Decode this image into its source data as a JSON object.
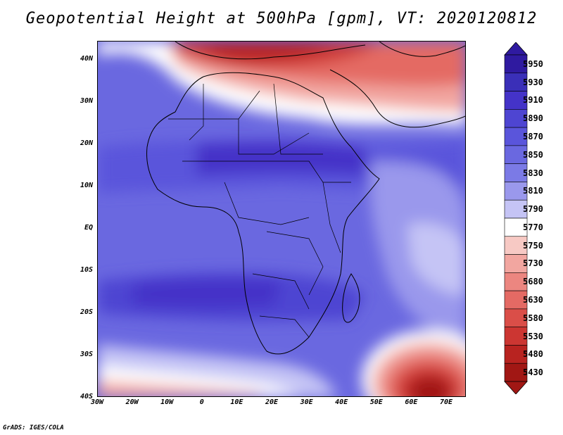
{
  "title": "Geopotential Height at 500hPa [gpm], VT: 2020120812",
  "credit": "GrADS: IGES/COLA",
  "lat_labels": [
    "40N",
    "30N",
    "20N",
    "10N",
    "EQ",
    "10S",
    "20S",
    "30S",
    "40S"
  ],
  "lon_labels": [
    "30W",
    "20W",
    "10W",
    "0",
    "10E",
    "20E",
    "30E",
    "40E",
    "50E",
    "60E",
    "70E"
  ],
  "colorbar": {
    "levels": [
      "5950",
      "5930",
      "5910",
      "5890",
      "5870",
      "5850",
      "5830",
      "5810",
      "5790",
      "5770",
      "5750",
      "5730",
      "5680",
      "5630",
      "5580",
      "5530",
      "5480",
      "5430"
    ],
    "colors": [
      "#2f1aa0",
      "#3a2fb8",
      "#4433c8",
      "#4e45d2",
      "#5a55db",
      "#6a68e0",
      "#7b7ae6",
      "#9a98ec",
      "#c5c4f5",
      "#ffffff",
      "#f7c9c4",
      "#f2a6a0",
      "#ec8680",
      "#e46a64",
      "#da4e48",
      "#cc3632",
      "#b82320",
      "#a11714"
    ]
  }
}
